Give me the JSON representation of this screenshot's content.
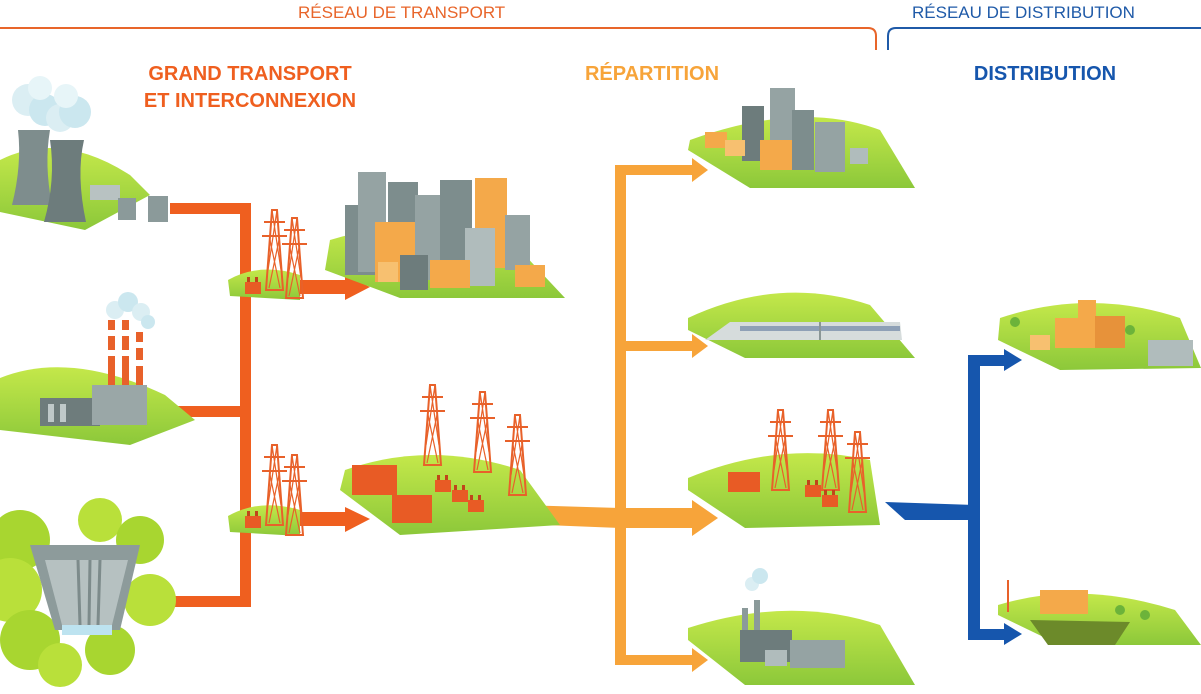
{
  "networks": {
    "transport": "RÉSEAU DE TRANSPORT",
    "distribution": "RÉSEAU DE DISTRIBUTION"
  },
  "sections": {
    "grand_transport_line1": "GRAND TRANSPORT",
    "grand_transport_line2": "ET INTERCONNEXION",
    "repartition": "RÉPARTITION",
    "distribution": "DISTRIBUTION"
  },
  "colors": {
    "transport": "#ef5f1f",
    "repartition": "#f7a43a",
    "distribution": "#1656ad",
    "ground": "#a6d63a",
    "building_grey": "#7d8d8d",
    "building_orange": "#f4a94a"
  },
  "icons": [
    "nuclear-plant-icon",
    "thermal-plant-icon",
    "hydro-dam-icon",
    "pylon-icon",
    "transformer-icon",
    "city-icon",
    "substation-icon",
    "train-icon",
    "factory-icon",
    "village-icon",
    "farm-icon"
  ]
}
